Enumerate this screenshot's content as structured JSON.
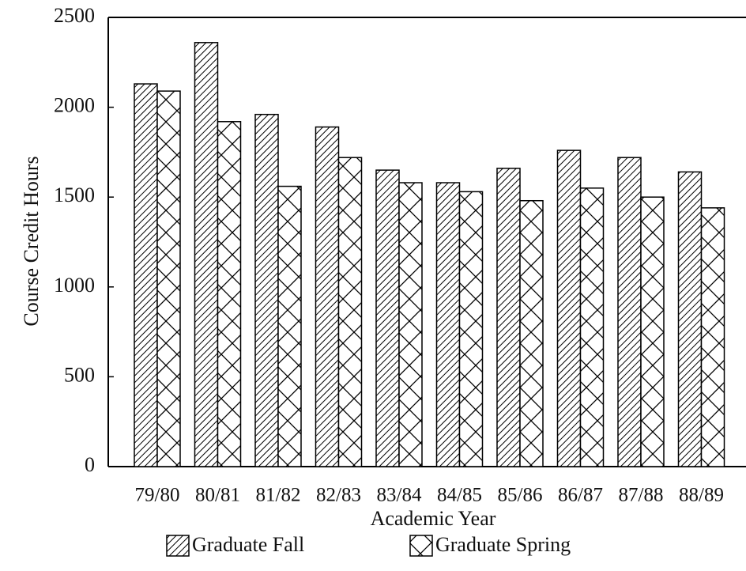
{
  "chart_data": {
    "type": "bar",
    "x_label": "Academic Year",
    "y_label": "Course Credit Hours",
    "categories": [
      "79/80",
      "80/81",
      "81/82",
      "82/83",
      "83/84",
      "84/85",
      "85/86",
      "86/87",
      "87/88",
      "88/89"
    ],
    "series": [
      {
        "name": "Graduate Fall",
        "color": "#000000",
        "hatch": "diagonal",
        "values": [
          2130,
          2360,
          1960,
          1890,
          1650,
          1580,
          1660,
          1760,
          1720,
          1640
        ]
      },
      {
        "name": "Graduate Spring",
        "color": "#000000",
        "hatch": "cross",
        "values": [
          2090,
          1920,
          1560,
          1720,
          1580,
          1530,
          1480,
          1550,
          1500,
          1440
        ]
      }
    ],
    "ylim": [
      0,
      2500
    ],
    "yticks": [
      0,
      500,
      1000,
      1500,
      2000,
      2500
    ]
  }
}
